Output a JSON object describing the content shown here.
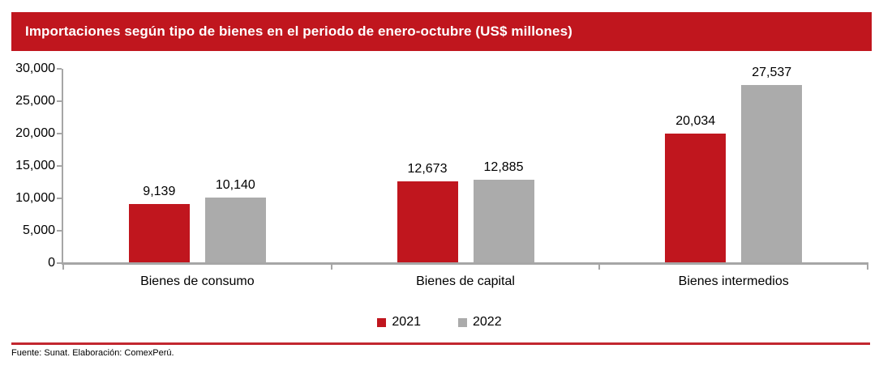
{
  "header": {
    "title": "Importaciones según tipo de bienes en el periodo de enero-octubre (US$ millones)"
  },
  "colors": {
    "header_bg": "#c0161e",
    "header_text": "#ffffff",
    "series_2021": "#c0161e",
    "series_2022": "#ababab",
    "axis": "#a6a6a6",
    "divider": "#c2272f"
  },
  "chart_data": {
    "type": "bar",
    "title": "Importaciones según tipo de bienes en el periodo de enero-octubre (US$ millones)",
    "categories": [
      "Bienes de consumo",
      "Bienes de capital",
      "Bienes intermedios"
    ],
    "series": [
      {
        "name": "2021",
        "color": "#c0161e",
        "values": [
          9139,
          12673,
          20034
        ],
        "labels": [
          "9,139",
          "12,673",
          "20,034"
        ]
      },
      {
        "name": "2022",
        "color": "#ababab",
        "values": [
          10140,
          12885,
          27537
        ],
        "labels": [
          "10,140",
          "12,885",
          "27,537"
        ]
      }
    ],
    "ylim": [
      0,
      30000
    ],
    "ytick_step": 5000,
    "ytick_labels": [
      "0",
      "5,000",
      "10,000",
      "15,000",
      "20,000",
      "25,000",
      "30,000"
    ],
    "grid": false,
    "legend_position": "bottom"
  },
  "footer": {
    "source": "Fuente: Sunat. Elaboración: ComexPerú."
  }
}
